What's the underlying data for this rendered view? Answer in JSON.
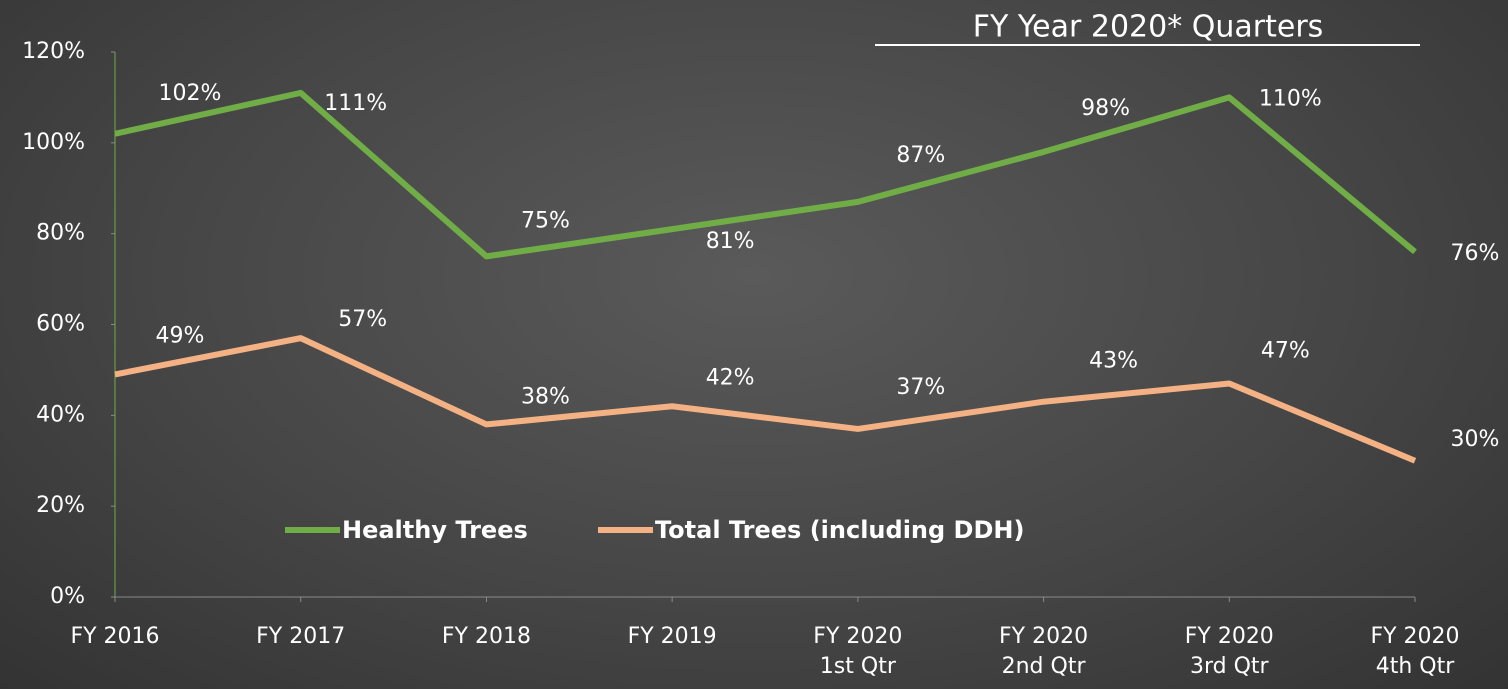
{
  "chart_data": {
    "type": "line",
    "annotation": "FY Year 2020* Quarters",
    "categories": [
      "FY 2016",
      "FY 2017",
      "FY 2018",
      "FY 2019",
      "FY 2020\n1st Qtr",
      "FY 2020\n2nd Qtr",
      "FY 2020\n3rd Qtr",
      "FY 2020\n4th Qtr"
    ],
    "series": [
      {
        "name": "Healthy Trees",
        "color": "#70ad47",
        "values": [
          102,
          111,
          75,
          81,
          87,
          98,
          110,
          76
        ],
        "value_labels": [
          "102%",
          "111%",
          "75%",
          "81%",
          "87%",
          "98%",
          "110%",
          "76%"
        ]
      },
      {
        "name": "Total Trees (including DDH)",
        "color": "#f4b183",
        "values": [
          49,
          57,
          38,
          42,
          37,
          43,
          47,
          30
        ],
        "value_labels": [
          "49%",
          "57%",
          "38%",
          "42%",
          "37%",
          "43%",
          "47%",
          "30%"
        ]
      }
    ],
    "ylim": [
      0,
      120
    ],
    "yticks": [
      {
        "value": 0,
        "label": "0%"
      },
      {
        "value": 20,
        "label": "20%"
      },
      {
        "value": 40,
        "label": "40%"
      },
      {
        "value": 60,
        "label": "60%"
      },
      {
        "value": 80,
        "label": "80%"
      },
      {
        "value": 100,
        "label": "100%"
      },
      {
        "value": 120,
        "label": "120%"
      }
    ]
  }
}
